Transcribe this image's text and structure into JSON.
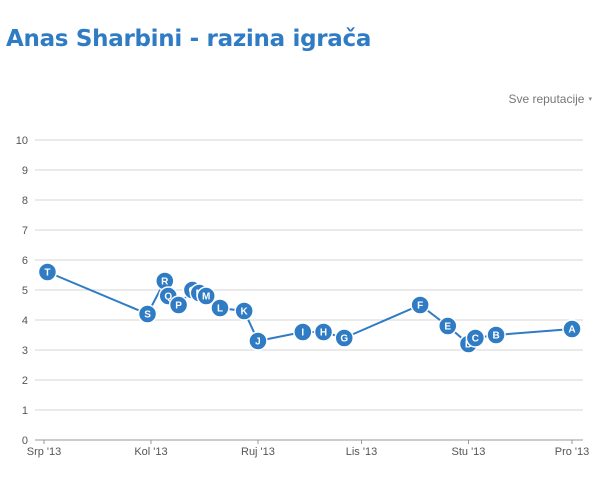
{
  "page": {
    "title": "Anas Sharbini - razina igrača",
    "filter_label": "Sve reputacije",
    "filter_caret": "▾"
  },
  "colors": {
    "accent": "#2f7bc4",
    "marker": "#2f7bc4",
    "line": "#2f7bc4",
    "grid": "#d6d6d6"
  },
  "chart_data": {
    "type": "line",
    "title": "",
    "xlabel": "",
    "ylabel": "",
    "ylim": [
      0,
      10
    ],
    "yticks": [
      "0",
      "1",
      "2",
      "3",
      "4",
      "5",
      "6",
      "7",
      "8",
      "9",
      "10"
    ],
    "xtick_labels": [
      {
        "label": "Srp '13",
        "date": "2013-07-01"
      },
      {
        "label": "Kol '13",
        "date": "2013-08-01"
      },
      {
        "label": "Ruj '13",
        "date": "2013-09-01"
      },
      {
        "label": "Lis '13",
        "date": "2013-10-01"
      },
      {
        "label": "Stu '13",
        "date": "2013-11-01"
      },
      {
        "label": "Pro '13",
        "date": "2013-12-01"
      }
    ],
    "grid": true,
    "series": [
      {
        "points": [
          {
            "label": "T",
            "date": "2013-07-02",
            "value": 5.6
          },
          {
            "label": "S",
            "date": "2013-07-31",
            "value": 4.2
          },
          {
            "label": "R",
            "date": "2013-08-05",
            "value": 5.3
          },
          {
            "label": "Q",
            "date": "2013-08-06",
            "value": 4.8
          },
          {
            "label": "P",
            "date": "2013-08-09",
            "value": 4.5
          },
          {
            "label": "O",
            "date": "2013-08-13",
            "value": 5.0
          },
          {
            "label": "N",
            "date": "2013-08-15",
            "value": 4.9
          },
          {
            "label": "M",
            "date": "2013-08-17",
            "value": 4.8
          },
          {
            "label": "L",
            "date": "2013-08-21",
            "value": 4.4
          },
          {
            "label": "K",
            "date": "2013-08-28",
            "value": 4.3
          },
          {
            "label": "J",
            "date": "2013-09-01",
            "value": 3.3
          },
          {
            "label": "I",
            "date": "2013-09-14",
            "value": 3.6
          },
          {
            "label": "H",
            "date": "2013-09-20",
            "value": 3.6
          },
          {
            "label": "G",
            "date": "2013-09-26",
            "value": 3.4
          },
          {
            "label": "F",
            "date": "2013-10-18",
            "value": 4.5
          },
          {
            "label": "E",
            "date": "2013-10-26",
            "value": 3.8
          },
          {
            "label": "D",
            "date": "2013-11-01",
            "value": 3.2
          },
          {
            "label": "C",
            "date": "2013-11-03",
            "value": 3.4
          },
          {
            "label": "B",
            "date": "2013-11-09",
            "value": 3.5
          },
          {
            "label": "A",
            "date": "2013-12-01",
            "value": 3.7
          }
        ]
      }
    ]
  }
}
